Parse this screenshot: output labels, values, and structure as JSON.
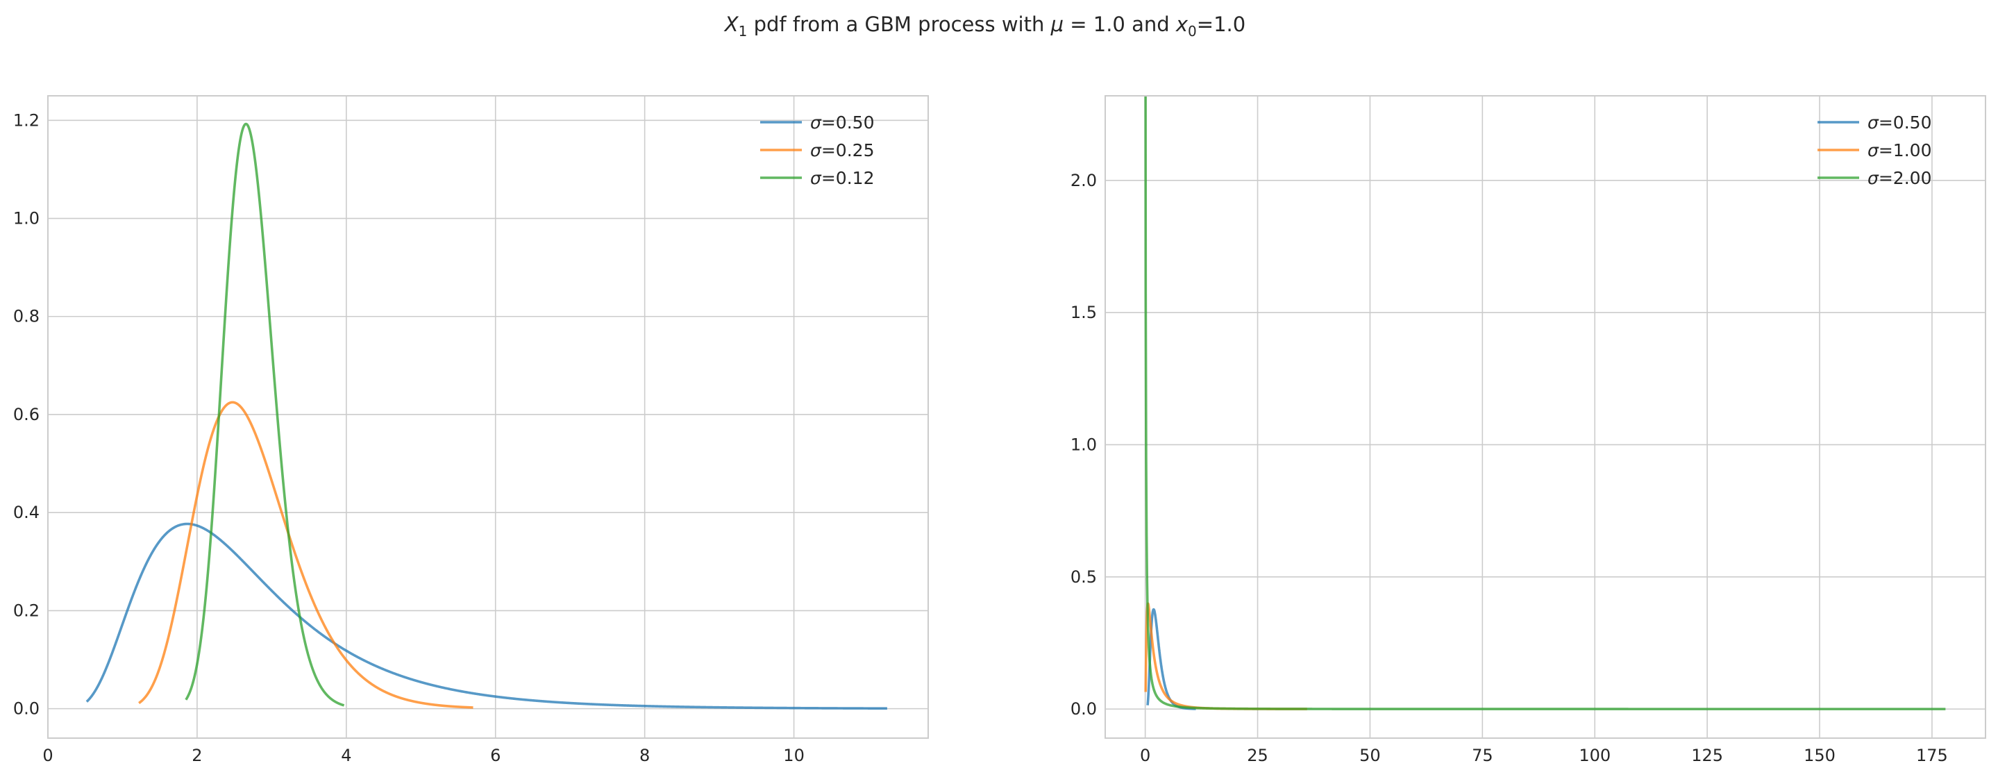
{
  "title": {
    "var": "X",
    "sub": "1",
    "text_mid": " pdf from a GBM process with ",
    "mu_sym": "μ",
    "mu_eq": " = 1.0",
    "and": " and ",
    "x0_var": "x",
    "x0_sub": "0",
    "x0_eq": "=1.0"
  },
  "colors": {
    "blue": "#1f77b4",
    "orange": "#ff7f0e",
    "green": "#2ca02c",
    "grid": "#cccccc",
    "spine": "#cccccc",
    "text": "#262626"
  },
  "chart_data": [
    {
      "type": "line",
      "title": "",
      "xlabel": "",
      "ylabel": "",
      "xlim": [
        0,
        11.8
      ],
      "ylim": [
        -0.06,
        1.25
      ],
      "xticks": [
        0,
        2,
        4,
        6,
        8,
        10
      ],
      "xtick_labels": [
        "0",
        "2",
        "4",
        "6",
        "8",
        "10"
      ],
      "yticks": [
        0.0,
        0.2,
        0.4,
        0.6,
        0.8,
        1.0,
        1.2
      ],
      "ytick_labels": [
        "0.0",
        "0.2",
        "0.4",
        "0.6",
        "0.8",
        "1.0",
        "1.2"
      ],
      "grid": true,
      "legend_position": "top-right",
      "x0": 1.0,
      "mu": 1.0,
      "t": 1.0,
      "series": [
        {
          "sigma": 0.5,
          "label": "σ=0.50",
          "color": "#1f77b4",
          "x_range": [
            0.52,
            11.25
          ]
        },
        {
          "sigma": 0.25,
          "label": "σ=0.25",
          "color": "#ff7f0e",
          "x_range": [
            1.22,
            5.7
          ]
        },
        {
          "sigma": 0.125,
          "label": "σ=0.12",
          "color": "#2ca02c",
          "x_range": [
            1.85,
            3.97
          ]
        }
      ]
    },
    {
      "type": "line",
      "title": "",
      "xlabel": "",
      "ylabel": "",
      "xlim": [
        -8.9,
        186.9
      ],
      "ylim": [
        -0.11,
        2.32
      ],
      "xticks": [
        0,
        25,
        50,
        75,
        100,
        125,
        150,
        175
      ],
      "xtick_labels": [
        "0",
        "25",
        "50",
        "75",
        "100",
        "125",
        "150",
        "175"
      ],
      "yticks": [
        0.0,
        0.5,
        1.0,
        1.5,
        2.0
      ],
      "ytick_labels": [
        "0.0",
        "0.5",
        "1.0",
        "1.5",
        "2.0"
      ],
      "grid": true,
      "legend_position": "top-right",
      "x0": 1.0,
      "mu": 1.0,
      "t": 1.0,
      "series": [
        {
          "sigma": 0.5,
          "label": "σ=0.50",
          "color": "#1f77b4",
          "x_range": [
            0.52,
            11.25
          ]
        },
        {
          "sigma": 1.0,
          "label": "σ=1.00",
          "color": "#ff7f0e",
          "x_range": [
            0.09,
            36.0
          ]
        },
        {
          "sigma": 2.0,
          "label": "σ=2.00",
          "color": "#2ca02c",
          "x_range": [
            0.005,
            178.0
          ]
        }
      ]
    }
  ]
}
